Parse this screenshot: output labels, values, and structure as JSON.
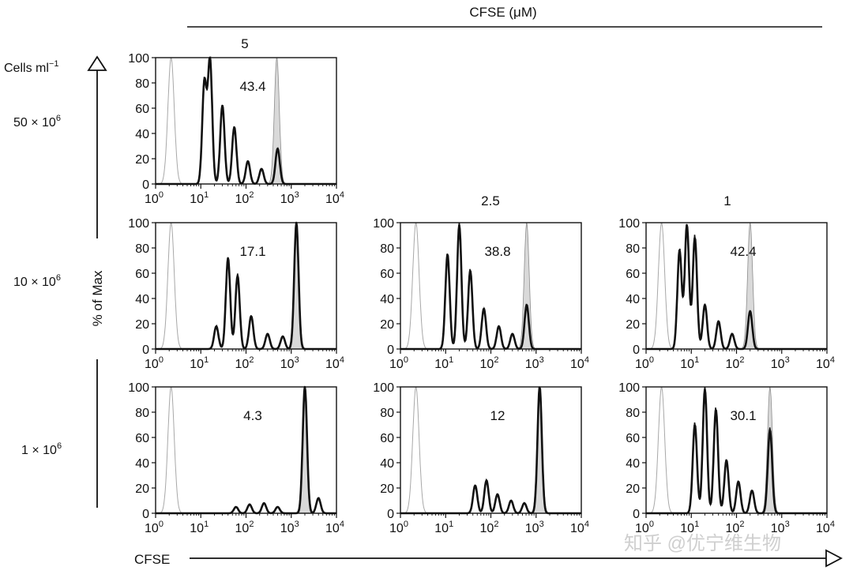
{
  "figure": {
    "header_title": "CFSE (μM)",
    "concentrations": [
      "5",
      "2.5",
      "1"
    ],
    "row_axis_label": "Cells ml",
    "row_axis_label_sup": "−1",
    "row_labels": [
      {
        "base": "50 × 10",
        "exp": "6"
      },
      {
        "base": "10 × 10",
        "exp": "6"
      },
      {
        "base": "1 × 10",
        "exp": "6"
      }
    ],
    "y_axis_title": "% of Max",
    "x_axis_title": "CFSE",
    "watermark": "知乎 @优宁维生物"
  },
  "chart_data": {
    "type": "histogram-grid",
    "x_scale": "log10",
    "xlim_exp": [
      0,
      4
    ],
    "ylim": [
      0,
      100
    ],
    "y_ticks": [
      0,
      20,
      40,
      60,
      80,
      100
    ],
    "x_tick_exps": [
      0,
      1,
      2,
      3,
      4
    ],
    "x_tick_base": "10",
    "series_legend": {
      "unstained": "thin gray outline (unstained control)",
      "undivided": "gray filled (undivided reference)",
      "sample": "thick black outline (proliferated sample)"
    },
    "panels": [
      {
        "row": 0,
        "col": 0,
        "concentration": "5",
        "density": "50 × 10^6",
        "label": "43.4",
        "unstained_peak": 2.2,
        "ref_peak": 480,
        "sample_peaks": [
          [
            12,
            80
          ],
          [
            16,
            98
          ],
          [
            30,
            62
          ],
          [
            55,
            45
          ],
          [
            110,
            18
          ],
          [
            220,
            12
          ],
          [
            500,
            28
          ]
        ]
      },
      {
        "row": 1,
        "col": 0,
        "concentration": "5",
        "density": "10 × 10^6",
        "label": "17.1",
        "unstained_peak": 2.2,
        "ref_peak": 1300,
        "sample_peaks": [
          [
            22,
            18
          ],
          [
            40,
            72
          ],
          [
            65,
            58
          ],
          [
            130,
            26
          ],
          [
            300,
            12
          ],
          [
            650,
            10
          ],
          [
            1300,
            100
          ]
        ]
      },
      {
        "row": 1,
        "col": 1,
        "concentration": "2.5",
        "density": "10 × 10^6",
        "label": "38.8",
        "unstained_peak": 2.2,
        "ref_peak": 620,
        "sample_peaks": [
          [
            11,
            75
          ],
          [
            20,
            98
          ],
          [
            35,
            62
          ],
          [
            70,
            32
          ],
          [
            150,
            18
          ],
          [
            300,
            12
          ],
          [
            620,
            35
          ]
        ]
      },
      {
        "row": 1,
        "col": 2,
        "concentration": "1",
        "density": "10 × 10^6",
        "label": "42.4",
        "unstained_peak": 2.2,
        "ref_peak": 200,
        "sample_peaks": [
          [
            5.5,
            78
          ],
          [
            8,
            98
          ],
          [
            12,
            88
          ],
          [
            20,
            35
          ],
          [
            40,
            22
          ],
          [
            80,
            12
          ],
          [
            200,
            30
          ]
        ]
      },
      {
        "row": 2,
        "col": 0,
        "concentration": "5",
        "density": "1 × 10^6",
        "label": "4.3",
        "unstained_peak": 2.2,
        "ref_peak": 2000,
        "sample_peaks": [
          [
            60,
            5
          ],
          [
            120,
            7
          ],
          [
            250,
            8
          ],
          [
            500,
            5
          ],
          [
            2000,
            100
          ],
          [
            4000,
            12
          ]
        ]
      },
      {
        "row": 2,
        "col": 1,
        "concentration": "2.5",
        "density": "1 × 10^6",
        "label": "12",
        "unstained_peak": 2.2,
        "ref_peak": 1200,
        "sample_peaks": [
          [
            45,
            22
          ],
          [
            80,
            26
          ],
          [
            140,
            15
          ],
          [
            280,
            10
          ],
          [
            550,
            8
          ],
          [
            1200,
            100
          ]
        ]
      },
      {
        "row": 2,
        "col": 2,
        "concentration": "1",
        "density": "1 × 10^6",
        "label": "30.1",
        "unstained_peak": 2.2,
        "ref_peak": 550,
        "sample_peaks": [
          [
            12,
            70
          ],
          [
            20,
            98
          ],
          [
            35,
            82
          ],
          [
            60,
            42
          ],
          [
            110,
            25
          ],
          [
            220,
            18
          ],
          [
            550,
            66
          ]
        ]
      }
    ]
  }
}
